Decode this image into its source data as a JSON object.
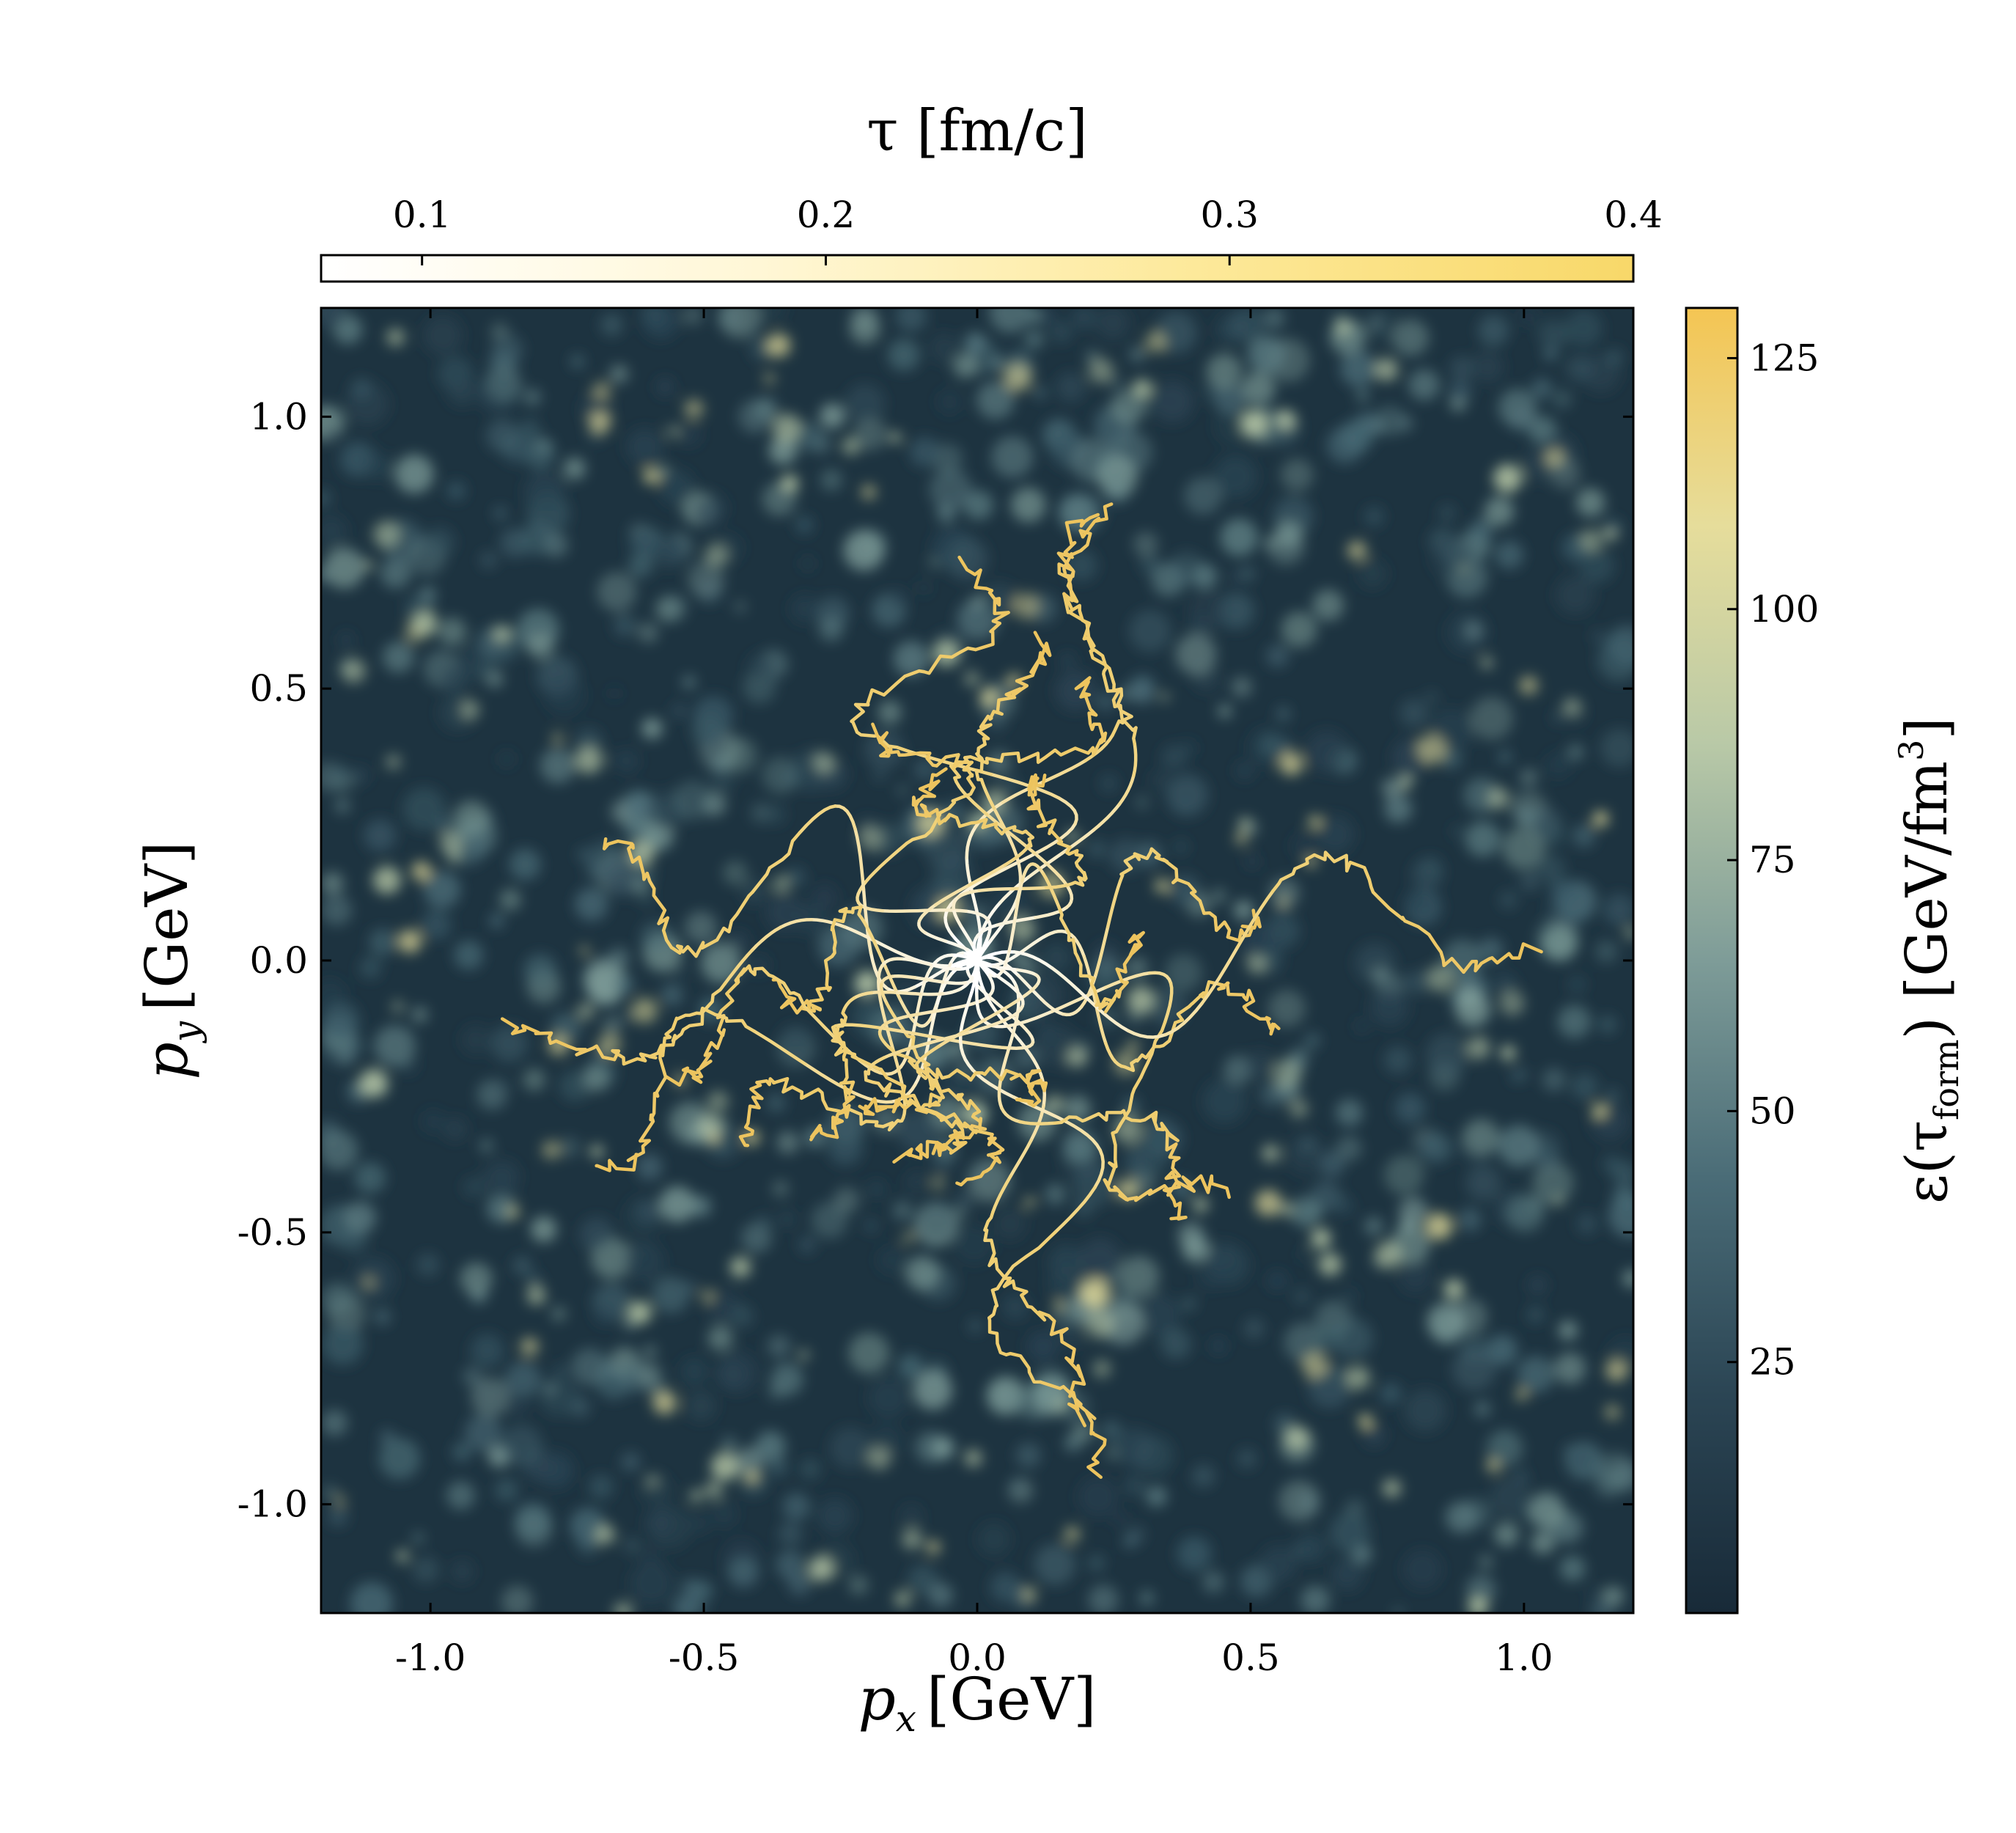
{
  "chart_data": {
    "type": "heatmap",
    "title": "",
    "xlabel": {
      "var": "p",
      "sub": "x",
      "unit": "[GeV]"
    },
    "ylabel": {
      "var": "p",
      "sub": "y",
      "unit": "[GeV]"
    },
    "xlim": [
      -1.2,
      1.2
    ],
    "ylim": [
      -1.2,
      1.2
    ],
    "xticks": [
      -1.0,
      -0.5,
      0.0,
      0.5,
      1.0
    ],
    "xtick_labels": [
      "-1.0",
      "-0.5",
      "0.0",
      "0.5",
      "1.0"
    ],
    "yticks": [
      -1.0,
      -0.5,
      0.0,
      0.5,
      1.0
    ],
    "ytick_labels": [
      "-1.0",
      "-0.5",
      "0.0",
      "0.5",
      "1.0"
    ],
    "grid": false,
    "background_field": {
      "quantity": "energy density at formation time",
      "range": [
        0,
        130
      ],
      "description": "turbulent speckled field, mostly 10-40 GeV/fm^3 with sparse hot spots up to ~125"
    },
    "colorbar_right": {
      "label": "ε(τ_form) [GeV/fm³]",
      "label_parts": {
        "prefix": "ε(τ",
        "sub": "form",
        "suffix": ") [GeV/fm",
        "sup": "3",
        "end": "]"
      },
      "range": [
        0,
        130
      ],
      "ticks": [
        25,
        50,
        75,
        100,
        125
      ],
      "tick_labels": [
        "25",
        "50",
        "75",
        "100",
        "125"
      ],
      "colors": [
        "#182a38",
        "#2b4554",
        "#4a6c77",
        "#7e9c98",
        "#b9c9a7",
        "#e6dd9b",
        "#f4c553"
      ]
    },
    "colorbar_top": {
      "label": "τ [fm/c]",
      "range": [
        0.075,
        0.4
      ],
      "ticks": [
        0.1,
        0.2,
        0.3,
        0.4
      ],
      "tick_labels": [
        "0.1",
        "0.2",
        "0.3",
        "0.4"
      ],
      "colors": [
        "#ffffff",
        "#fff7d6",
        "#fde99a",
        "#f8d869"
      ]
    },
    "trajectories": [
      {
        "end": [
          0.21,
          0.83
        ]
      },
      {
        "end": [
          0.25,
          0.84
        ]
      },
      {
        "end": [
          -0.03,
          0.73
        ]
      },
      {
        "end": [
          0.12,
          0.59
        ]
      },
      {
        "end": [
          0.19,
          0.52
        ]
      },
      {
        "end": [
          -0.18,
          0.42
        ]
      },
      {
        "end": [
          -0.07,
          0.34
        ]
      },
      {
        "end": [
          0.13,
          0.34
        ]
      },
      {
        "end": [
          -0.68,
          0.21
        ]
      },
      {
        "end": [
          -0.86,
          -0.12
        ]
      },
      {
        "end": [
          -0.37,
          -0.05
        ]
      },
      {
        "end": [
          -0.56,
          -0.21
        ]
      },
      {
        "end": [
          -0.69,
          -0.38
        ]
      },
      {
        "end": [
          -0.42,
          -0.33
        ]
      },
      {
        "end": [
          -0.3,
          -0.32
        ]
      },
      {
        "end": [
          -0.2,
          -0.28
        ]
      },
      {
        "end": [
          -0.14,
          -0.36
        ]
      },
      {
        "end": [
          -0.08,
          -0.35
        ]
      },
      {
        "end": [
          0.18,
          -0.84
        ]
      },
      {
        "end": [
          0.21,
          -0.95
        ]
      },
      {
        "end": [
          0.37,
          -0.48
        ]
      },
      {
        "end": [
          0.45,
          -0.42
        ]
      },
      {
        "end": [
          0.55,
          -0.13
        ]
      },
      {
        "end": [
          0.52,
          0.08
        ]
      },
      {
        "end": [
          1.02,
          0.03
        ]
      },
      {
        "end": [
          0.3,
          0.04
        ]
      },
      {
        "end": [
          0.08,
          -0.27
        ]
      },
      {
        "end": [
          -0.02,
          -0.4
        ]
      }
    ]
  }
}
